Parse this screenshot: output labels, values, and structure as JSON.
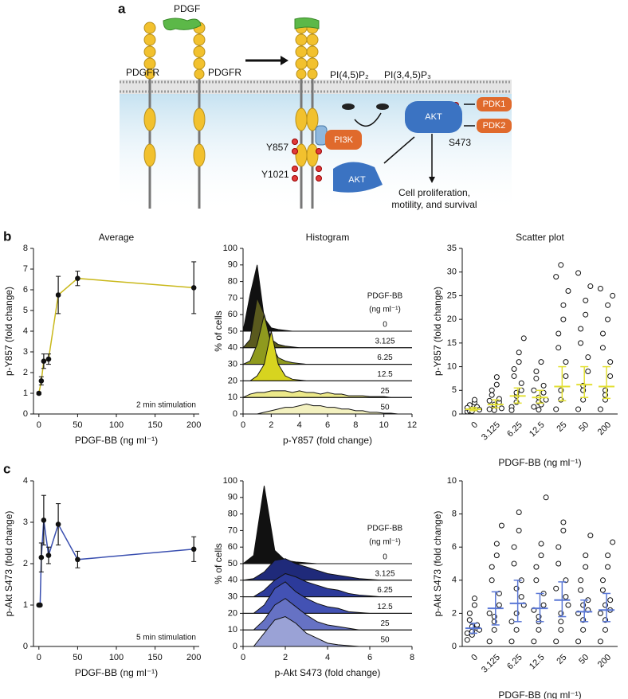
{
  "figure": {
    "panel_labels": [
      "a",
      "b",
      "c"
    ]
  },
  "diagram": {
    "ligand": "PDGF",
    "receptor_left": "PDGFR",
    "receptor_right": "PDGFR",
    "lipid_1": "PI(4,5)P₂",
    "lipid_2": "PI(3,4,5)P₃",
    "pi3k": "PI3K",
    "akt_membrane": "AKT",
    "akt_cytosol": "AKT",
    "pdk1": "PDK1",
    "pdk2": "PDK2",
    "site_akt": "S473",
    "site_1": "Y857",
    "site_2": "Y1021",
    "outcome": [
      "Cell proliferation,",
      "motility, and survival"
    ]
  },
  "chart_data": [
    {
      "type": "errorline",
      "title": "Average",
      "x": [
        0,
        3.125,
        6.25,
        12.5,
        25,
        50,
        200
      ],
      "values": [
        1.0,
        1.6,
        2.55,
        2.65,
        5.75,
        6.55,
        6.1
      ],
      "errors": [
        0.05,
        0.2,
        0.35,
        0.25,
        0.9,
        0.35,
        1.25
      ],
      "color": "#c9b81a",
      "xlim": [
        -7,
        207
      ],
      "xticks": [
        0,
        50,
        100,
        150,
        200
      ],
      "ylim": [
        0,
        8
      ],
      "yticks": [
        0,
        1,
        2,
        3,
        4,
        5,
        6,
        7,
        8
      ],
      "xlabel": "PDGF-BB (ng ml⁻¹)",
      "ylabel": "p-Y857 (fold change)",
      "annotation": "2 min stimulation"
    },
    {
      "type": "ridgeline",
      "title": "Histogram",
      "x": [
        0,
        0.5,
        1,
        1.5,
        2,
        2.5,
        3,
        3.5,
        4,
        4.5,
        5,
        5.5,
        6,
        6.5,
        7,
        7.5,
        8,
        8.5,
        9,
        9.5,
        10,
        10.5,
        11,
        11.5,
        12
      ],
      "xlim": [
        0,
        12
      ],
      "xticks": [
        0,
        2,
        4,
        6,
        8,
        10,
        12
      ],
      "ylim": [
        0,
        100
      ],
      "yticks": [
        0,
        10,
        20,
        30,
        40,
        50,
        60,
        70,
        80,
        90,
        100
      ],
      "xlabel": "p-Y857 (fold change)",
      "ylabel": "% of cells",
      "legend_title": [
        "PDGF-BB",
        "(ng ml⁻¹)"
      ],
      "series": [
        {
          "name": "0",
          "color": "#111111",
          "offset": 50,
          "values": [
            0,
            22,
            40,
            8,
            2,
            1,
            0.5,
            0,
            0,
            0,
            0,
            0,
            0,
            0,
            0,
            0,
            0,
            0,
            0,
            0,
            0,
            0,
            0,
            0,
            0
          ]
        },
        {
          "name": "3.125",
          "color": "#5a5a1e",
          "offset": 40,
          "values": [
            0,
            5,
            30,
            20,
            5,
            2,
            1,
            0.5,
            0,
            0,
            0,
            0,
            0,
            0,
            0,
            0,
            0,
            0,
            0,
            0,
            0,
            0,
            0,
            0,
            0
          ]
        },
        {
          "name": "6.25",
          "color": "#8f9a1e",
          "offset": 30,
          "values": [
            0,
            2,
            12,
            30,
            12,
            4,
            2,
            1,
            0.5,
            0,
            0,
            0,
            0,
            0,
            0,
            0,
            0,
            0,
            0,
            0,
            0,
            0,
            0,
            0,
            0
          ]
        },
        {
          "name": "12.5",
          "color": "#d7d41f",
          "offset": 20,
          "values": [
            0,
            0,
            3,
            10,
            30,
            10,
            3,
            1,
            0.5,
            0,
            0,
            0,
            0,
            0,
            0,
            0,
            0,
            0,
            0,
            0,
            0,
            0,
            0,
            0,
            0
          ]
        },
        {
          "name": "25",
          "color": "#ece98a",
          "offset": 10,
          "values": [
            0,
            2,
            3,
            3,
            4,
            4,
            4,
            3,
            4,
            3,
            3,
            2,
            3,
            2,
            2,
            1,
            1,
            1,
            0.5,
            0.5,
            0.5,
            0,
            0,
            0,
            0
          ]
        },
        {
          "name": "50",
          "color": "#f3f1c0",
          "offset": 0,
          "values": [
            0,
            0,
            0,
            1,
            2,
            3,
            4,
            4,
            5,
            6,
            5,
            5,
            4,
            4,
            3,
            3,
            2,
            2,
            1,
            1,
            0.5,
            0.5,
            0,
            0,
            0
          ]
        }
      ]
    },
    {
      "type": "strip",
      "title": "Scatter plot",
      "categories": [
        "0",
        "3.125",
        "6.25",
        "12.5",
        "25",
        "50",
        "200"
      ],
      "points": [
        [
          0.5,
          0.8,
          1.0,
          1.2,
          1.5,
          0.7,
          1.9,
          2.4,
          3.0,
          0.9,
          1.3,
          0.6
        ],
        [
          1.0,
          1.5,
          2.0,
          2.5,
          3.2,
          4.0,
          5.0,
          6.2,
          7.8,
          1.2,
          2.8,
          0.8
        ],
        [
          1.5,
          2.5,
          3.8,
          5.0,
          6.5,
          8.0,
          9.5,
          11,
          13,
          16,
          0.8,
          4.5
        ],
        [
          1.5,
          2.5,
          3.5,
          4.5,
          6,
          7.5,
          9,
          11,
          2,
          3,
          5,
          0.9
        ],
        [
          1,
          3,
          5,
          8,
          11,
          14,
          17,
          20,
          23,
          26,
          29,
          31.5
        ],
        [
          1,
          3,
          6,
          9,
          12,
          15,
          18,
          21,
          24,
          27,
          29.8,
          5
        ],
        [
          1,
          3,
          5,
          8,
          11,
          14,
          17,
          20,
          23,
          25,
          26.5,
          4
        ]
      ],
      "median": [
        1.0,
        2.0,
        3.8,
        3.5,
        5.8,
        6.2,
        5.8
      ],
      "q1": [
        0.7,
        1.3,
        2.3,
        2.3,
        2.8,
        3.5,
        3.3
      ],
      "q3": [
        1.4,
        3.0,
        5.5,
        5.0,
        10,
        10,
        10
      ],
      "color": "#e3e034",
      "ylim": [
        0,
        35
      ],
      "yticks": [
        0,
        5,
        10,
        15,
        20,
        25,
        30,
        35
      ],
      "xlabel": "PDGF-BB (ng ml⁻¹)",
      "ylabel": "p-Y857 (fold change)"
    },
    {
      "type": "errorline",
      "x": [
        0,
        1.5625,
        3.125,
        6.25,
        12.5,
        25,
        50,
        200
      ],
      "values": [
        1.0,
        1.0,
        2.15,
        3.05,
        2.2,
        2.95,
        2.1,
        2.35
      ],
      "errors": [
        0.02,
        0.02,
        0.35,
        0.6,
        0.2,
        0.5,
        0.2,
        0.3
      ],
      "color": "#3a4fb0",
      "xlim": [
        -7,
        207
      ],
      "xticks": [
        0,
        50,
        100,
        150,
        200
      ],
      "ylim": [
        0,
        4
      ],
      "yticks": [
        0,
        1,
        2,
        3,
        4
      ],
      "xlabel": "PDGF-BB (ng ml⁻¹)",
      "ylabel": "p-Akt S473 (fold change)",
      "annotation": "5 min stimulation"
    },
    {
      "type": "ridgeline",
      "x": [
        0,
        0.5,
        1,
        1.5,
        2,
        2.5,
        3,
        3.5,
        4,
        4.5,
        5,
        5.5,
        6,
        6.5,
        7,
        7.5,
        8
      ],
      "xlim": [
        0,
        8
      ],
      "xticks": [
        0,
        2,
        4,
        6,
        8
      ],
      "ylim": [
        0,
        100
      ],
      "yticks": [
        0,
        10,
        20,
        30,
        40,
        50,
        60,
        70,
        80,
        90,
        100
      ],
      "xlabel": "p-Akt S473 (fold change)",
      "ylabel": "% of cells",
      "legend_title": [
        "PDGF-BB",
        "(ng ml⁻¹)"
      ],
      "series": [
        {
          "name": "0",
          "color": "#111111",
          "offset": 50,
          "values": [
            0,
            5,
            47,
            8,
            2,
            1,
            0.5,
            0,
            0,
            0,
            0,
            0,
            0,
            0,
            0,
            0,
            0
          ]
        },
        {
          "name": "3.125",
          "color": "#1f2a7a",
          "offset": 40,
          "values": [
            0,
            1,
            5,
            12,
            13,
            10,
            8,
            6,
            4,
            3,
            2,
            1,
            0.5,
            0,
            0,
            0,
            0
          ]
        },
        {
          "name": "6.25",
          "color": "#2c3a9a",
          "offset": 30,
          "values": [
            0,
            0,
            4,
            10,
            14,
            12,
            9,
            7,
            5,
            4,
            2,
            1,
            0.5,
            0,
            0,
            0,
            0
          ]
        },
        {
          "name": "12.5",
          "color": "#4352b4",
          "offset": 20,
          "values": [
            0,
            0,
            5,
            15,
            19,
            13,
            9,
            6,
            4,
            3,
            1,
            0.5,
            0,
            0,
            0,
            0,
            0
          ]
        },
        {
          "name": "25",
          "color": "#6672c4",
          "offset": 10,
          "values": [
            0,
            0,
            6,
            15,
            19,
            14,
            9,
            5,
            3,
            2,
            1,
            0,
            0,
            0,
            0,
            0,
            0
          ]
        },
        {
          "name": "50",
          "color": "#9aa2d6",
          "offset": 0,
          "values": [
            0,
            0,
            8,
            16,
            18,
            14,
            8,
            5,
            2,
            1,
            0.5,
            0,
            0,
            0,
            0,
            0,
            0
          ]
        }
      ]
    },
    {
      "type": "strip",
      "categories": [
        "0",
        "3.125",
        "6.25",
        "12.5",
        "25",
        "50",
        "200"
      ],
      "points": [
        [
          0.4,
          0.7,
          0.9,
          1.1,
          1.3,
          1.6,
          2.0,
          2.5,
          2.9,
          1.0,
          0.8,
          1.2
        ],
        [
          0.3,
          1,
          1.8,
          2.5,
          3.2,
          4,
          4.8,
          5.5,
          6.2,
          7.3,
          2.0,
          1.5
        ],
        [
          0.3,
          1,
          2,
          3,
          4,
          5,
          6,
          7,
          8.1,
          2.5,
          1.5,
          3.5
        ],
        [
          0.3,
          1,
          1.8,
          2.5,
          3.2,
          4,
          4.8,
          5.5,
          6.2,
          9,
          2.2,
          1.5
        ],
        [
          0.3,
          1,
          2,
          3,
          4,
          5,
          6,
          7,
          7.5,
          2.5,
          3.5,
          1.5
        ],
        [
          0.3,
          1,
          1.6,
          2.2,
          2.8,
          3.4,
          4,
          4.8,
          5.5,
          6.7,
          2,
          2.5
        ],
        [
          0.3,
          1,
          1.6,
          2.2,
          2.8,
          3.4,
          4,
          4.8,
          5.5,
          6.3,
          2,
          2.5
        ]
      ],
      "median": [
        1.1,
        2.3,
        2.6,
        2.3,
        2.8,
        2.1,
        2.2
      ],
      "q1": [
        0.8,
        1.3,
        1.5,
        1.5,
        1.8,
        1.5,
        1.5
      ],
      "q3": [
        1.4,
        3.3,
        4.0,
        3.2,
        3.9,
        2.8,
        3.2
      ],
      "color": "#5b78d6",
      "ylim": [
        0,
        10
      ],
      "yticks": [
        0,
        2,
        4,
        6,
        8,
        10
      ],
      "xlabel": "PDGF-BB (ng ml⁻¹)",
      "ylabel": "p-Akt S473 (fold change)"
    }
  ]
}
